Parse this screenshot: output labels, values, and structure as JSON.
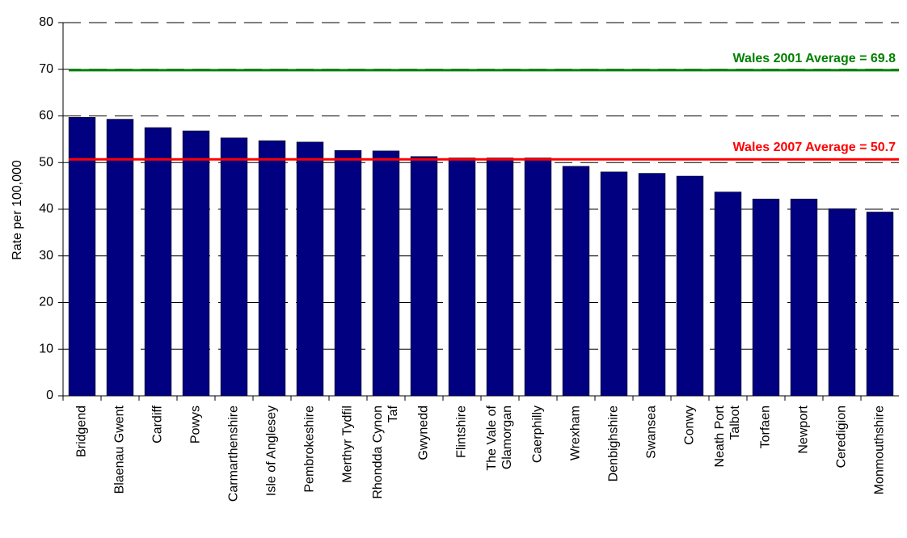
{
  "chart_data": {
    "type": "bar",
    "ylabel": "Rate per 100,000",
    "categories": [
      "Bridgend",
      "Blaenau Gwent",
      "Cardiff",
      "Powys",
      "Carmarthenshire",
      "Isle of Anglesey",
      "Pembrokeshire",
      "Merthyr Tydfil",
      "Rhondda Cynon\nTaf",
      "Gwynedd",
      "Flintshire",
      "The Vale of\nGlamorgan",
      "Caerphilly",
      "Wrexham",
      "Denbighshire",
      "Swansea",
      "Conwy",
      "Neath Port\nTalbot",
      "Torfaen",
      "Newport",
      "Ceredigion",
      "Monmouthshire"
    ],
    "values": [
      59.7,
      59.3,
      57.5,
      56.8,
      55.3,
      54.7,
      54.4,
      52.6,
      52.5,
      51.3,
      51.0,
      51.0,
      51.0,
      49.2,
      48.0,
      47.7,
      47.1,
      43.7,
      42.2,
      42.2,
      40.1,
      39.4
    ],
    "color": "#000080",
    "ylim": [
      0,
      80
    ],
    "yticks": [
      0,
      10,
      20,
      30,
      40,
      50,
      60,
      70,
      80
    ],
    "grid": true,
    "reference_lines": [
      {
        "label": "Wales 2001 Average = 69.8",
        "value": 69.8,
        "color": "#008000"
      },
      {
        "label": "Wales 2007 Average = 50.7",
        "value": 50.7,
        "color": "#ff0000"
      }
    ]
  }
}
